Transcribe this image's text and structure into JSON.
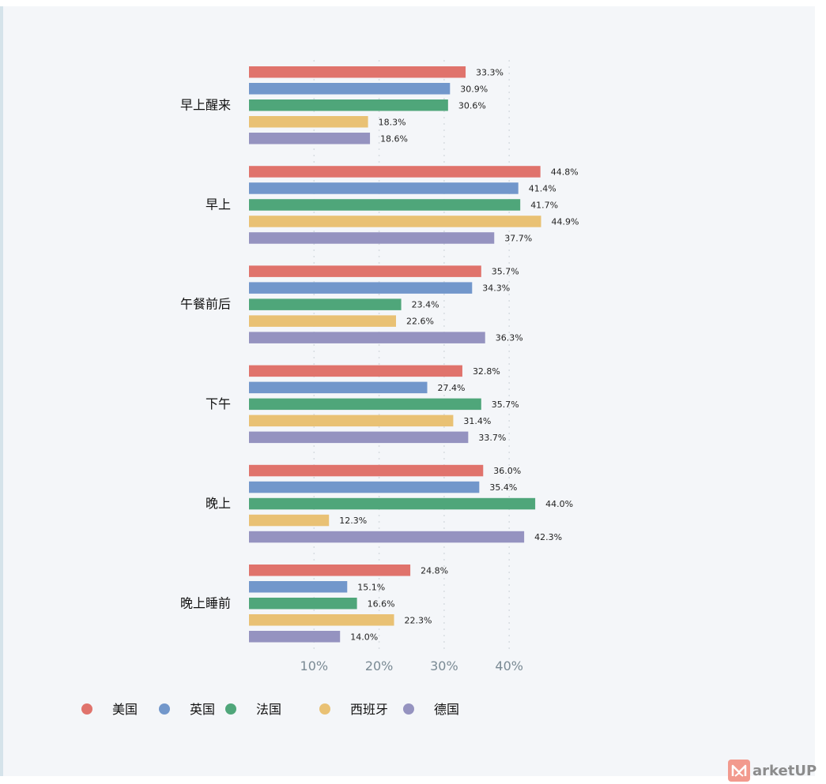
{
  "chart_data": {
    "type": "bar",
    "orientation": "horizontal",
    "categories": [
      "早上醒来",
      "早上",
      "午餐前后",
      "下午",
      "晚上",
      "晚上睡前"
    ],
    "series": [
      {
        "name": "美国",
        "color": "#e0736c",
        "values": [
          33.3,
          44.8,
          35.7,
          32.8,
          36.0,
          24.8
        ]
      },
      {
        "name": "英国",
        "color": "#7297cb",
        "values": [
          30.9,
          41.4,
          34.3,
          27.4,
          35.4,
          15.1
        ]
      },
      {
        "name": "法国",
        "color": "#4fa67a",
        "values": [
          30.6,
          41.7,
          23.4,
          35.7,
          44.0,
          16.6
        ]
      },
      {
        "name": "西班牙",
        "color": "#e9c174",
        "values": [
          18.3,
          44.9,
          22.6,
          31.4,
          12.3,
          22.3
        ]
      },
      {
        "name": "德国",
        "color": "#9593c0",
        "values": [
          18.6,
          37.7,
          36.3,
          33.7,
          42.3,
          14.0
        ]
      }
    ],
    "value_labels": [
      [
        "33.3%",
        "44.8%",
        "35.7%",
        "32.8%",
        "36.0%",
        "24.8%"
      ],
      [
        "30.9%",
        "41.4%",
        "34.3%",
        "27.4%",
        "35.4%",
        "15.1%"
      ],
      [
        "30.6%",
        "41.7%",
        "23.4%",
        "35.7%",
        "44.0%",
        "16.6%"
      ],
      [
        "18.3%",
        "44.9%",
        "22.6%",
        "31.4%",
        "12.3%",
        "22.3%"
      ],
      [
        "18.6%",
        "37.7%",
        "36.3%",
        "33.7%",
        "42.3%",
        "14.0%"
      ]
    ],
    "xticks": [
      10,
      20,
      30,
      40
    ],
    "xtick_labels": [
      "10%",
      "20%",
      "30%",
      "40%"
    ],
    "xlim": [
      0,
      50
    ],
    "grid": "vertical dotted",
    "legend_position": "bottom-left",
    "title": "",
    "xlabel": "",
    "ylabel": ""
  },
  "watermark": {
    "icon": "m-logo-icon",
    "text": "arketUP"
  }
}
